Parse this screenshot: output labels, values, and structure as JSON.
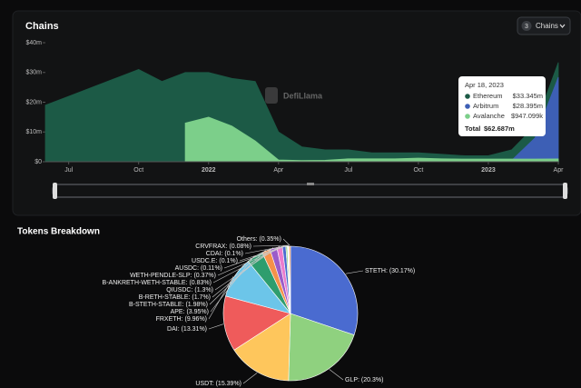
{
  "header": {
    "title": "Chains",
    "button_count": "3",
    "button_label": "Chains"
  },
  "watermark": "DefiLlama",
  "chart_data": [
    {
      "type": "area",
      "x": [
        "2021-06",
        "2021-07",
        "2021-08",
        "2021-09",
        "2021-10",
        "2021-11",
        "2021-12",
        "2022-01",
        "2022-02",
        "2022-03",
        "2022-04",
        "2022-05",
        "2022-06",
        "2022-07",
        "2022-08",
        "2022-09",
        "2022-10",
        "2022-11",
        "2022-12",
        "2023-01",
        "2023-02",
        "2023-03",
        "2023-04"
      ],
      "series": [
        {
          "name": "Ethereum",
          "color": "#1c5a46",
          "values": [
            19000000,
            22000000,
            25000000,
            28000000,
            31000000,
            27000000,
            30000000,
            30000000,
            28000000,
            27000000,
            10000000,
            5000000,
            4000000,
            4000000,
            3000000,
            3000000,
            3000000,
            2500000,
            2000000,
            2000000,
            4000000,
            12000000,
            33345000
          ]
        },
        {
          "name": "Arbitrum",
          "color": "#3d5fb5",
          "values": [
            null,
            null,
            null,
            null,
            null,
            null,
            null,
            null,
            null,
            null,
            null,
            null,
            null,
            null,
            null,
            null,
            null,
            null,
            null,
            null,
            500000,
            8000000,
            28395000
          ]
        },
        {
          "name": "Avalanche",
          "color": "#7ccf8a",
          "values": [
            null,
            null,
            null,
            null,
            null,
            null,
            13000000,
            15000000,
            12000000,
            7000000,
            600000,
            400000,
            500000,
            1000000,
            1000000,
            1000000,
            1200000,
            1000000,
            900000,
            900000,
            900000,
            900000,
            947099
          ]
        }
      ],
      "xlim": [
        "2021-06",
        "2023-04"
      ],
      "xticks": [
        {
          "value": "2021-07",
          "label": "Jul"
        },
        {
          "value": "2021-10",
          "label": "Oct"
        },
        {
          "value": "2022-01",
          "label": "2022"
        },
        {
          "value": "2022-04",
          "label": "Apr"
        },
        {
          "value": "2022-07",
          "label": "Jul"
        },
        {
          "value": "2022-10",
          "label": "Oct"
        },
        {
          "value": "2023-01",
          "label": "2023"
        },
        {
          "value": "2023-04",
          "label": "Apr"
        }
      ],
      "ylim": [
        0,
        40000000
      ],
      "yticks": [
        {
          "value": 0,
          "label": "$0"
        },
        {
          "value": 10000000,
          "label": "$10m"
        },
        {
          "value": 20000000,
          "label": "$20m"
        },
        {
          "value": 30000000,
          "label": "$30m"
        },
        {
          "value": 40000000,
          "label": "$40m"
        }
      ],
      "grid": false,
      "tooltip": {
        "date": "Apr 18, 2023",
        "values": [
          "$33.345m",
          "$28.395m",
          "$947.099k"
        ],
        "total_label": "Total",
        "total": "$62.687m"
      }
    },
    {
      "type": "pie",
      "title": "Tokens Breakdown",
      "values": [
        30.17,
        20.3,
        15.39,
        13.31,
        9.96,
        3.95,
        1.98,
        1.7,
        1.3,
        0.83,
        0.37,
        0.11,
        0.1,
        0.1,
        0.08,
        0.35
      ],
      "value_labels": [
        "STETH: (30.17%)",
        "GLP: (20.3%)",
        "USDT: (15.39%)",
        "DAI: (13.31%)",
        "FRXETH: (9.96%)",
        "APE: (3.95%)",
        "B-STETH-STABLE: (1.98%)",
        "B-RETH-STABLE: (1.7%)",
        "QIUSDC: (1.3%)",
        "B-ANKRETH-WETH-STABLE: (0.83%)",
        "WETH-PENDLE-SLP: (0.37%)",
        "AUSDC: (0.11%)",
        "USDC.E: (0.1%)",
        "CDAI: (0.1%)",
        "CRVFRAX: (0.08%)",
        "Others: (0.35%)"
      ],
      "colors": [
        "#4a6bd0",
        "#8fd17f",
        "#fec65c",
        "#ef5b5b",
        "#6cc5e9",
        "#2e9d6e",
        "#f5914a",
        "#9b5cc9",
        "#eb7dce",
        "#4a6bd0",
        "#8fd17f",
        "#fec65c",
        "#ef5b5b",
        "#6cc5e9",
        "#2e9d6e",
        "#f5914a"
      ]
    }
  ]
}
